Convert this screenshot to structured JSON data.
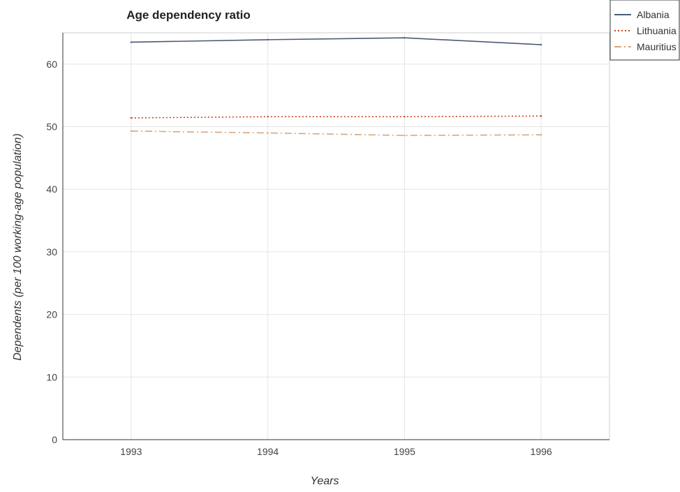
{
  "chart_data": {
    "type": "line",
    "title": "Age dependency ratio",
    "xlabel": "Years",
    "ylabel": "Dependents (per 100 working-age population)",
    "categories": [
      "1993",
      "1994",
      "1995",
      "1996"
    ],
    "ylim": [
      0,
      65
    ],
    "yticks": [
      0,
      10,
      20,
      30,
      40,
      50,
      60
    ],
    "grid": true,
    "legend_position": "top-right",
    "series": [
      {
        "name": "Albania",
        "color": "#4a5a78",
        "dash": "solid",
        "values": [
          63.5,
          63.9,
          64.2,
          63.1
        ]
      },
      {
        "name": "Lithuania",
        "color": "#c8401e",
        "dash": "dotted",
        "values": [
          51.4,
          51.6,
          51.6,
          51.7
        ]
      },
      {
        "name": "Mauritius",
        "color": "#d9a679",
        "dash": "dashdot",
        "values": [
          49.3,
          49.0,
          48.6,
          48.7
        ]
      }
    ]
  }
}
